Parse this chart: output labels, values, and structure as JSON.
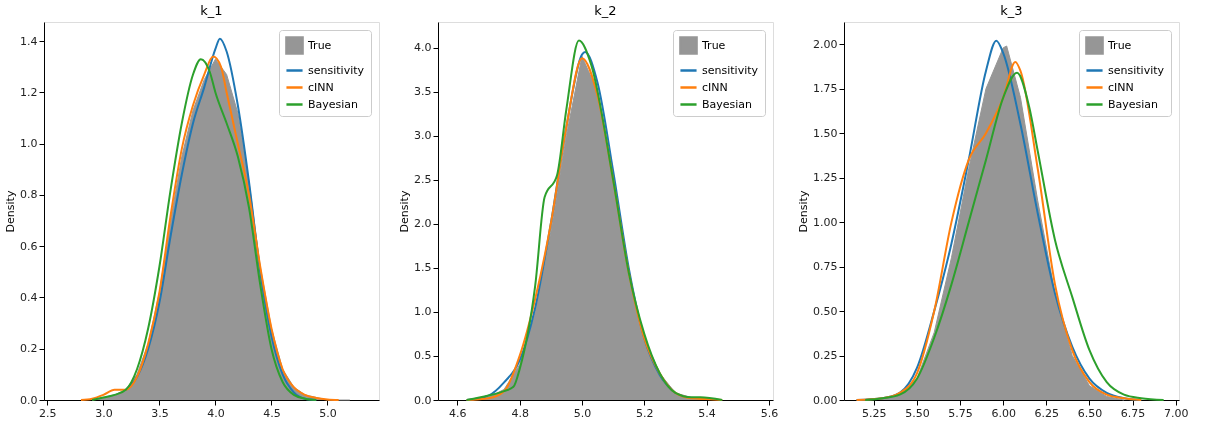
{
  "chart_data": [
    {
      "type": "line",
      "title": "k_1",
      "ylabel": "Density",
      "legend": "top right",
      "grid": false,
      "xlim": [
        2.47,
        5.46
      ],
      "ylim": [
        0,
        1.475
      ],
      "xticks": [
        2.5,
        {
          "value": 3,
          "label": "3.0"
        },
        3.5,
        {
          "value": 4,
          "label": "4.0"
        },
        4.5,
        {
          "value": 5,
          "label": "5.0"
        }
      ],
      "yticks": [
        {
          "value": 0,
          "label": "0.0"
        },
        0.2,
        0.4,
        0.6,
        0.8,
        {
          "value": 1,
          "label": "1.0"
        },
        1.2,
        1.4
      ],
      "series": [
        {
          "name": "True",
          "type": "area",
          "color": "#969696",
          "x": [
            2.9,
            3.0,
            3.1,
            3.2,
            3.3,
            3.4,
            3.5,
            3.6,
            3.7,
            3.8,
            3.9,
            4.0,
            4.1,
            4.2,
            4.3,
            4.4,
            4.5,
            4.6,
            4.7,
            4.8,
            4.9,
            5.0,
            5.2
          ],
          "values": [
            0,
            0.01,
            0.02,
            0.04,
            0.1,
            0.22,
            0.42,
            0.7,
            0.95,
            1.13,
            1.25,
            1.33,
            1.27,
            1.12,
            0.85,
            0.52,
            0.28,
            0.12,
            0.05,
            0.02,
            0.01,
            0.0,
            0
          ]
        },
        {
          "name": "sensitivity",
          "color": "#1f77b4",
          "x": [
            3.2,
            3.3,
            3.4,
            3.5,
            3.6,
            3.7,
            3.8,
            3.9,
            4.0,
            4.04,
            4.1,
            4.2,
            4.3,
            4.4,
            4.5,
            4.6,
            4.7,
            4.8,
            4.9
          ],
          "values": [
            0.04,
            0.09,
            0.2,
            0.38,
            0.64,
            0.88,
            1.08,
            1.22,
            1.37,
            1.41,
            1.36,
            1.15,
            0.85,
            0.5,
            0.25,
            0.1,
            0.03,
            0.005,
            0
          ]
        },
        {
          "name": "cINN",
          "color": "#ff7f0e",
          "x": [
            2.8,
            2.9,
            3.0,
            3.1,
            3.2,
            3.3,
            3.4,
            3.5,
            3.6,
            3.7,
            3.8,
            3.9,
            3.98,
            4.05,
            4.1,
            4.2,
            4.3,
            4.4,
            4.5,
            4.6,
            4.7,
            4.8,
            4.9,
            5.0,
            5.1
          ],
          "values": [
            0,
            0.005,
            0.02,
            0.04,
            0.04,
            0.09,
            0.22,
            0.42,
            0.72,
            0.98,
            1.15,
            1.27,
            1.34,
            1.3,
            1.2,
            1.0,
            0.8,
            0.52,
            0.28,
            0.12,
            0.05,
            0.02,
            0.008,
            0.002,
            0
          ]
        },
        {
          "name": "Bayesian",
          "color": "#2ca02c",
          "x": [
            2.9,
            3.0,
            3.1,
            3.2,
            3.3,
            3.4,
            3.5,
            3.6,
            3.7,
            3.8,
            3.87,
            3.95,
            4.0,
            4.1,
            4.2,
            4.3,
            4.4,
            4.5,
            4.6,
            4.7,
            4.8,
            4.9
          ],
          "values": [
            0,
            0.01,
            0.02,
            0.04,
            0.12,
            0.28,
            0.52,
            0.82,
            1.08,
            1.27,
            1.33,
            1.28,
            1.2,
            1.08,
            0.95,
            0.75,
            0.45,
            0.2,
            0.07,
            0.02,
            0.005,
            0
          ]
        }
      ]
    },
    {
      "type": "line",
      "title": "k_2",
      "ylabel": "Density",
      "legend": "top right",
      "grid": false,
      "xlim": [
        4.538,
        5.613
      ],
      "ylim": [
        0,
        4.29
      ],
      "xticks": [
        4.6,
        4.8,
        {
          "value": 5,
          "label": "5.0"
        },
        5.2,
        5.4,
        5.6
      ],
      "yticks": [
        {
          "value": 0,
          "label": "0.0"
        },
        0.5,
        {
          "value": 1,
          "label": "1.0"
        },
        1.5,
        {
          "value": 2,
          "label": "2.0"
        },
        2.5,
        {
          "value": 3,
          "label": "3.0"
        },
        3.5,
        {
          "value": 4,
          "label": "4.0"
        }
      ],
      "series": [
        {
          "name": "True",
          "type": "area",
          "color": "#969696",
          "x": [
            4.63,
            4.7,
            4.75,
            4.8,
            4.85,
            4.9,
            4.95,
            5.0,
            5.05,
            5.1,
            5.15,
            5.2,
            5.25,
            5.3,
            5.35,
            5.4,
            5.45
          ],
          "values": [
            0,
            0.03,
            0.12,
            0.4,
            1.0,
            1.9,
            3.0,
            3.9,
            3.5,
            2.5,
            1.4,
            0.7,
            0.3,
            0.08,
            0.03,
            0.02,
            0
          ]
        },
        {
          "name": "sensitivity",
          "color": "#1f77b4",
          "x": [
            4.63,
            4.7,
            4.75,
            4.8,
            4.85,
            4.9,
            4.95,
            5.0,
            5.01,
            5.05,
            5.1,
            5.15,
            5.2,
            5.25,
            5.3
          ],
          "values": [
            0,
            0.05,
            0.2,
            0.45,
            1.05,
            2.0,
            3.1,
            3.92,
            3.95,
            3.6,
            2.6,
            1.5,
            0.7,
            0.28,
            0.08
          ]
        },
        {
          "name": "cINN",
          "color": "#ff7f0e",
          "x": [
            4.63,
            4.7,
            4.75,
            4.8,
            4.85,
            4.9,
            4.95,
            5.0,
            5.05,
            5.1,
            5.15,
            5.2,
            5.25,
            5.3,
            5.35,
            5.4,
            5.45
          ],
          "values": [
            0,
            0.02,
            0.1,
            0.5,
            1.15,
            2.0,
            3.1,
            3.88,
            3.45,
            2.5,
            1.45,
            0.7,
            0.3,
            0.08,
            0.02,
            0.01,
            0
          ]
        },
        {
          "name": "Bayesian",
          "color": "#2ca02c",
          "x": [
            4.63,
            4.7,
            4.75,
            4.78,
            4.8,
            4.85,
            4.88,
            4.92,
            4.95,
            4.99,
            5.03,
            5.1,
            5.15,
            5.2,
            5.25,
            5.3,
            5.35,
            5.38,
            5.45
          ],
          "values": [
            0,
            0.05,
            0.1,
            0.15,
            0.35,
            1.3,
            2.3,
            2.55,
            3.3,
            4.08,
            3.8,
            2.5,
            1.45,
            0.75,
            0.3,
            0.08,
            0.03,
            0.03,
            0
          ]
        }
      ]
    },
    {
      "type": "line",
      "title": "k_3",
      "ylabel": "Density",
      "legend": "top right",
      "grid": false,
      "xlim": [
        5.077,
        7.019
      ],
      "ylim": [
        0,
        2.125
      ],
      "xticks": [
        {
          "value": 5.25,
          "label": "5.25"
        },
        {
          "value": 5.5,
          "label": "5.50"
        },
        {
          "value": 5.75,
          "label": "5.75"
        },
        {
          "value": 6,
          "label": "6.00"
        },
        {
          "value": 6.25,
          "label": "6.25"
        },
        {
          "value": 6.5,
          "label": "6.50"
        },
        {
          "value": 6.75,
          "label": "6.75"
        },
        {
          "value": 7,
          "label": "7.00"
        }
      ],
      "yticks": [
        {
          "value": 0,
          "label": "0.00"
        },
        {
          "value": 0.25,
          "label": "0.25"
        },
        {
          "value": 0.5,
          "label": "0.50"
        },
        {
          "value": 0.75,
          "label": "0.75"
        },
        {
          "value": 1,
          "label": "1.00"
        },
        {
          "value": 1.25,
          "label": "1.25"
        },
        {
          "value": 1.5,
          "label": "1.50"
        },
        {
          "value": 1.75,
          "label": "1.75"
        },
        {
          "value": 2,
          "label": "2.00"
        }
      ],
      "series": [
        {
          "name": "True",
          "type": "area",
          "color": "#969696",
          "x": [
            5.15,
            5.3,
            5.4,
            5.5,
            5.6,
            5.7,
            5.8,
            5.9,
            6.0,
            6.02,
            6.1,
            6.2,
            6.3,
            6.4,
            6.5,
            6.6,
            6.7
          ],
          "values": [
            0,
            0.01,
            0.03,
            0.12,
            0.38,
            0.8,
            1.3,
            1.75,
            1.98,
            1.99,
            1.7,
            1.12,
            0.6,
            0.25,
            0.08,
            0.02,
            0
          ]
        },
        {
          "name": "sensitivity",
          "color": "#1f77b4",
          "x": [
            5.15,
            5.3,
            5.4,
            5.5,
            5.6,
            5.7,
            5.8,
            5.9,
            5.96,
            6.0,
            6.1,
            6.2,
            6.3,
            6.4,
            6.5,
            6.6,
            6.7,
            6.8
          ],
          "values": [
            0,
            0.01,
            0.04,
            0.18,
            0.5,
            0.88,
            1.35,
            1.85,
            2.02,
            1.95,
            1.55,
            1.05,
            0.6,
            0.3,
            0.12,
            0.04,
            0.01,
            0
          ]
        },
        {
          "name": "cINN",
          "color": "#ff7f0e",
          "x": [
            5.15,
            5.3,
            5.4,
            5.5,
            5.6,
            5.7,
            5.8,
            5.9,
            6.0,
            6.07,
            6.1,
            6.2,
            6.3,
            6.4,
            6.5,
            6.6,
            6.7,
            6.8
          ],
          "values": [
            0,
            0.01,
            0.04,
            0.15,
            0.5,
            1.0,
            1.35,
            1.5,
            1.7,
            1.9,
            1.85,
            1.3,
            0.65,
            0.28,
            0.1,
            0.03,
            0.01,
            0
          ]
        },
        {
          "name": "Bayesian",
          "color": "#2ca02c",
          "x": [
            5.2,
            5.3,
            5.4,
            5.5,
            5.6,
            5.7,
            5.8,
            5.9,
            6.0,
            6.08,
            6.15,
            6.2,
            6.3,
            6.4,
            6.5,
            6.6,
            6.7,
            6.8,
            6.93
          ],
          "values": [
            0,
            0.01,
            0.03,
            0.12,
            0.35,
            0.65,
            1.0,
            1.35,
            1.7,
            1.84,
            1.65,
            1.4,
            0.9,
            0.58,
            0.28,
            0.1,
            0.03,
            0.01,
            0
          ]
        }
      ]
    }
  ]
}
